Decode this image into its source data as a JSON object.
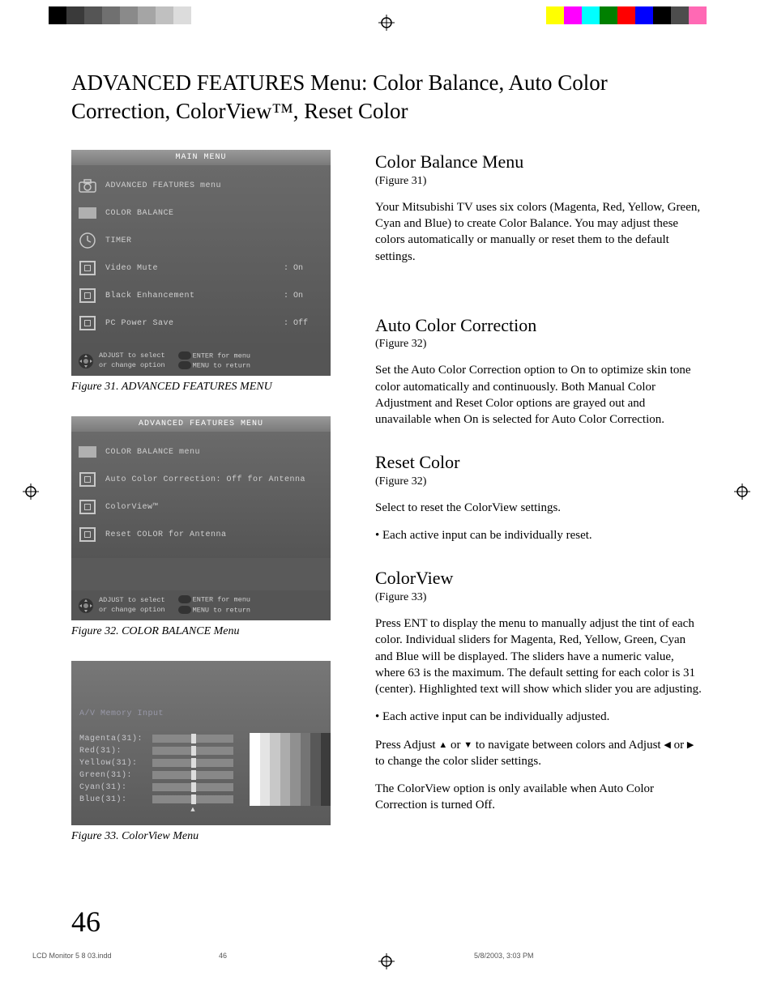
{
  "colorbars": {
    "left": [
      "#000000",
      "#3a3a3a",
      "#555555",
      "#707070",
      "#8a8a8a",
      "#a5a5a5",
      "#c0c0c0",
      "#dcdcdc",
      "#ffffff"
    ],
    "right": [
      "#ffff00",
      "#ff00ff",
      "#00ffff",
      "#008000",
      "#ff0000",
      "#0000ff",
      "#000000",
      "#4d4d4d",
      "#ff69b4",
      "#ffffff"
    ]
  },
  "title": "ADVANCED FEATURES Menu: Color Balance, Auto Color Correction, ColorView™, Reset Color",
  "fig31": {
    "title": "MAIN MENU",
    "rows": [
      {
        "icon": "camera",
        "label": "ADVANCED FEATURES menu",
        "val": ""
      },
      {
        "icon": "rect",
        "label": "COLOR BALANCE",
        "val": ""
      },
      {
        "icon": "clock",
        "label": "TIMER",
        "val": ""
      },
      {
        "icon": "box",
        "label": "Video Mute",
        "val": ": On"
      },
      {
        "icon": "box",
        "label": "Black Enhancement",
        "val": ": On"
      },
      {
        "icon": "box",
        "label": "PC Power Save",
        "val": ": Off"
      }
    ],
    "footer": {
      "l1": "ADJUST to select",
      "l2": "or change option",
      "r1": "ENTER for menu",
      "r2": "MENU  to return"
    },
    "caption": "Figure 31. ADVANCED FEATURES MENU"
  },
  "fig32": {
    "title": "ADVANCED FEATURES MENU",
    "rows": [
      {
        "icon": "rect",
        "label": "COLOR BALANCE menu",
        "val": ""
      },
      {
        "icon": "box",
        "label": "Auto Color Correction: Off for Antenna",
        "val": ""
      },
      {
        "icon": "box",
        "label": "ColorView™",
        "val": ""
      },
      {
        "icon": "box",
        "label": "Reset COLOR for Antenna",
        "val": ""
      }
    ],
    "footer": {
      "l1": "ADJUST to select",
      "l2": "or change option",
      "r1": "ENTER for menu",
      "r2": "MENU  to return"
    },
    "caption": "Figure 32.  COLOR BALANCE Menu"
  },
  "fig33": {
    "header": "A/V Memory Input",
    "sliders": [
      {
        "name": "Magenta(31):"
      },
      {
        "name": "Red(31):"
      },
      {
        "name": "Yellow(31):"
      },
      {
        "name": "Green(31):"
      },
      {
        "name": "Cyan(31):"
      },
      {
        "name": "Blue(31):"
      }
    ],
    "gradient": [
      "#ffffff",
      "#e4e4e4",
      "#c8c8c8",
      "#acacac",
      "#909090",
      "#747474",
      "#585858",
      "#3c3c3c"
    ],
    "caption": "Figure 33. ColorView Menu"
  },
  "right": {
    "s1": {
      "h": "Color Balance Menu",
      "f": "(Figure 31)",
      "p": "Your Mitsubishi TV uses six colors (Magenta, Red, Yellow, Green, Cyan and Blue) to create Color Balance.  You may adjust these colors automatically or manually or reset them to the default settings."
    },
    "s2": {
      "h": "Auto Color Correction",
      "f": "(Figure 32)",
      "p": "Set the Auto Color Correction option to On to optimize skin tone color automatically and continuously.  Both Manual Color Adjustment and Reset Color options are grayed out and unavailable when On is selected for Auto Color Correction."
    },
    "s3": {
      "h": "Reset Color",
      "f": "(Figure 32)",
      "p": "Select to reset the ColorView settings.",
      "li": "Each active input can be individually reset."
    },
    "s4": {
      "h": "ColorView",
      "f": "(Figure 33)",
      "p1": "Press ENT to display the menu to manually adjust the tint of each color.  Individual sliders for Magenta, Red, Yellow, Green, Cyan and Blue will be displayed.  The sliders have a numeric value, where 63 is the maximum. The default setting for each color is 31 (center).  Highlighted text will show which slider you are adjusting.",
      "li": "Each active input can be individually adjusted.",
      "p2a": "Press Adjust ",
      "p2b": " or ",
      "p2c": "  to navigate between colors and Adjust ",
      "p2d": " or ",
      "p2e": "  to change the color slider settings.",
      "p3": "The ColorView option is only available when Auto Color Correction is turned Off."
    }
  },
  "pagenum": "46",
  "footL": "LCD Monitor 5 8 03.indd",
  "footM": "46",
  "footR": "5/8/2003, 3:03 PM"
}
